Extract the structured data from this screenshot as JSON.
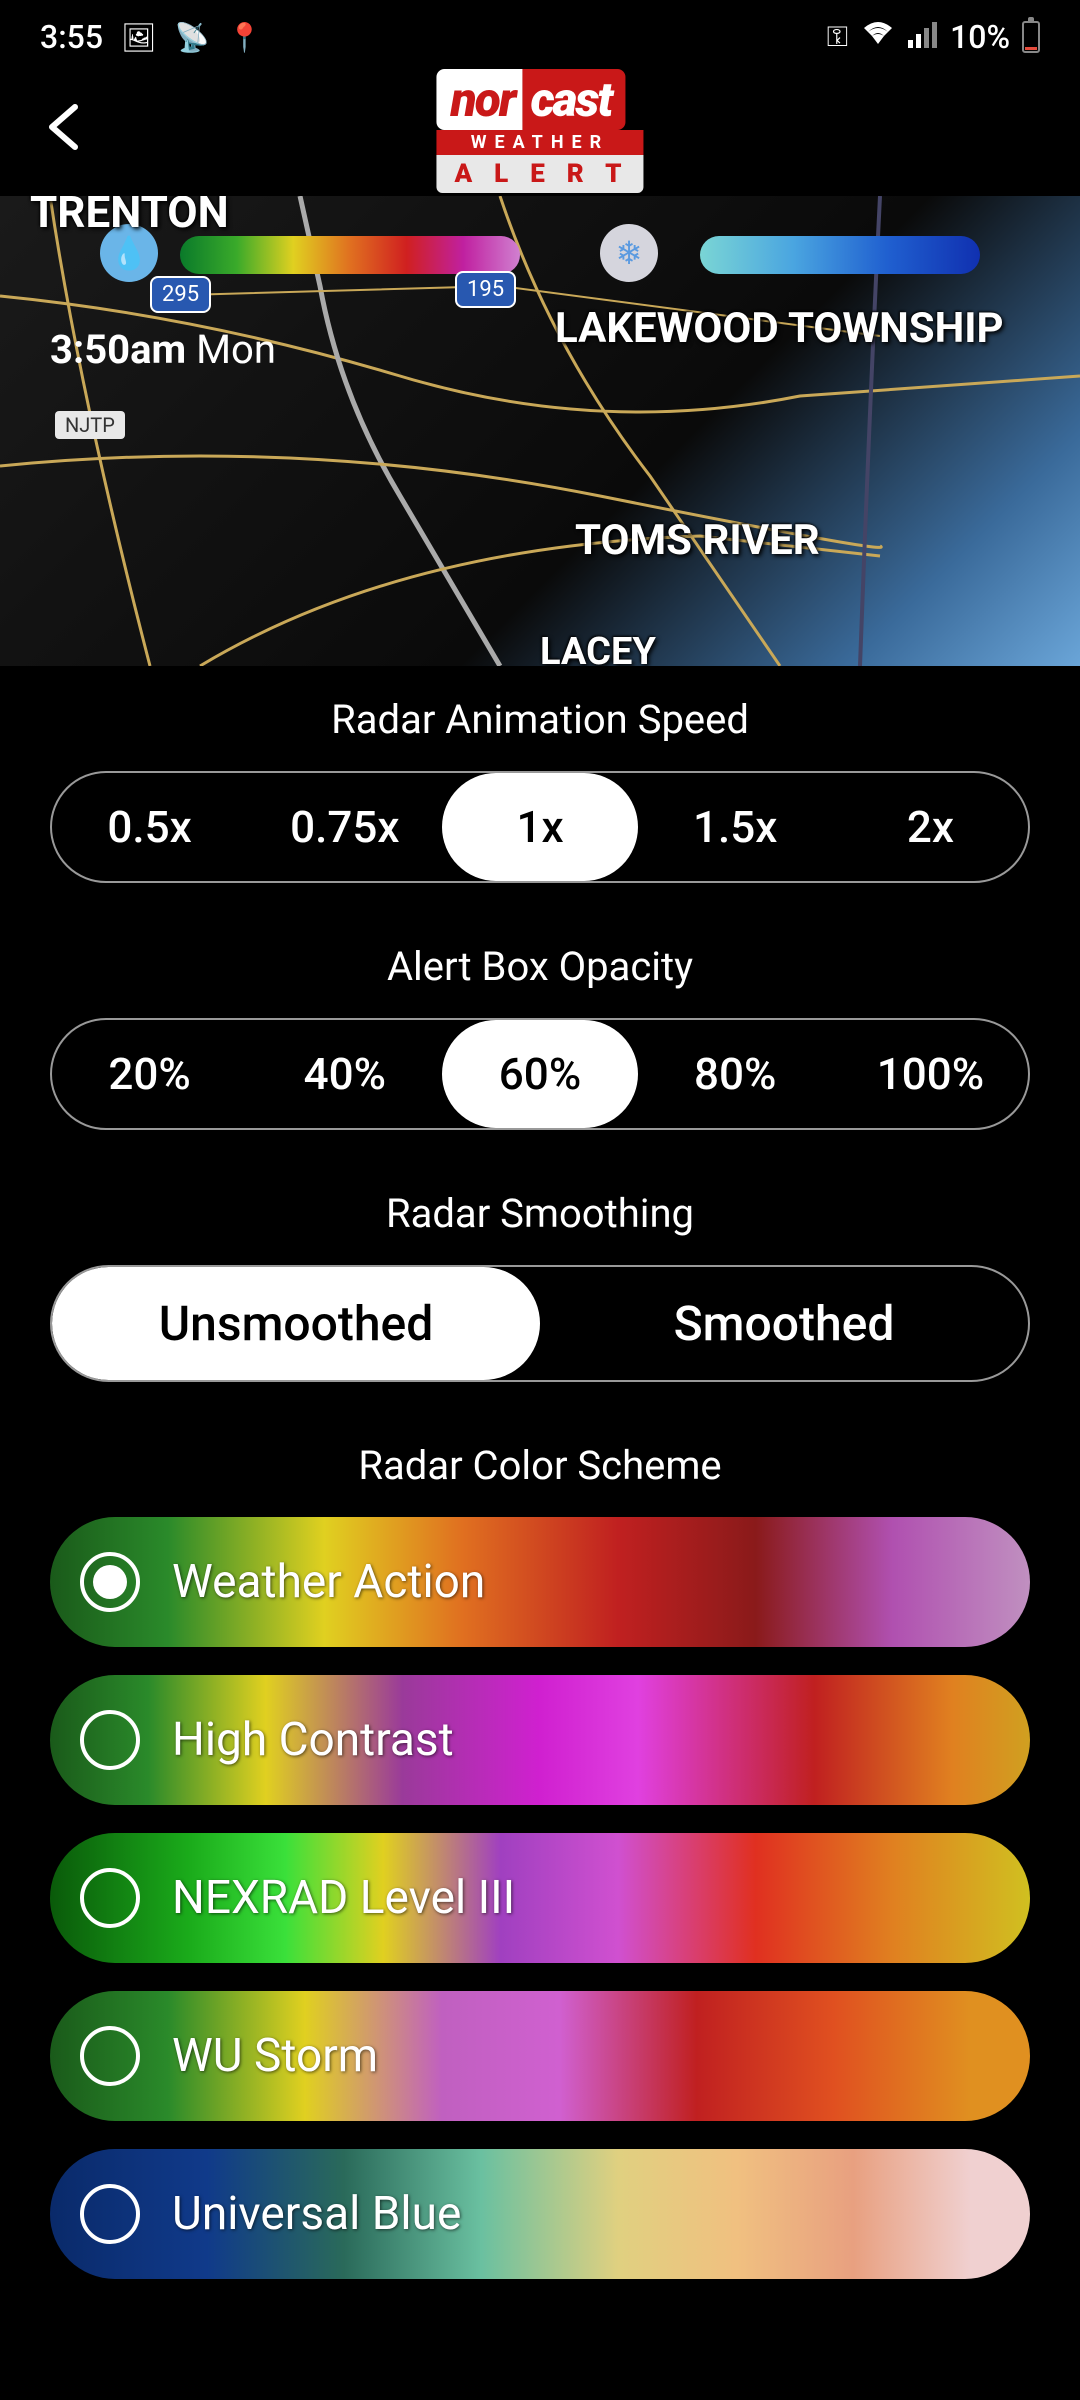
{
  "status_bar": {
    "time": "3:55",
    "battery_percent": "10%"
  },
  "header": {
    "logo_nor": "nor",
    "logo_cast": "cast",
    "logo_weather": "WEATHER",
    "logo_alert": "ALERT"
  },
  "map": {
    "time": "3:50am",
    "day": "Mon",
    "city_trenton": "TRENTON",
    "city_lakewood": "LAKEWOOD TOWNSHIP",
    "city_tomsriver": "TOMS RIVER",
    "city_lacey": "LACEY",
    "route_295": "295",
    "route_195": "195",
    "njtp": "NJTP",
    "legend_rain_gradient": [
      "#0a7a2a",
      "#3aaa2a",
      "#e0d020",
      "#e07020",
      "#d02020",
      "#c020a0",
      "#d080d0"
    ],
    "legend_ice_gradient": [
      "#7ad5d5",
      "#4aa5e0",
      "#2060d0",
      "#1030b0"
    ]
  },
  "settings": {
    "speed": {
      "title": "Radar Animation Speed",
      "options": [
        "0.5x",
        "0.75x",
        "1x",
        "1.5x",
        "2x"
      ],
      "selected": "1x"
    },
    "opacity": {
      "title": "Alert Box Opacity",
      "options": [
        "20%",
        "40%",
        "60%",
        "80%",
        "100%"
      ],
      "selected": "60%"
    },
    "smoothing": {
      "title": "Radar Smoothing",
      "options": [
        "Unsmoothed",
        "Smoothed"
      ],
      "selected": "Unsmoothed"
    },
    "color_scheme": {
      "title": "Radar Color Scheme",
      "selected": "Weather Action",
      "options": [
        {
          "label": "Weather Action",
          "gradient": "linear-gradient(90deg, #1a5a1a 0%, #2a8a2a 12%, #e0d020 28%, #e07020 42%, #c02020 58%, #8a1a1a 72%, #b050b0 86%, #c090c0 100%)"
        },
        {
          "label": "High Contrast",
          "gradient": "linear-gradient(90deg, #1a5a1a 0%, #2a8a2a 10%, #e0d020 22%, #9a3a9a 36%, #d020d0 50%, #e040e0 60%, #c02020 78%, #e08020 92%, #d0a020 100%)"
        },
        {
          "label": "NEXRAD Level III",
          "gradient": "linear-gradient(90deg, #0a5a0a 0%, #1aaa1a 14%, #3ae03a 24%, #e0d020 34%, #a040c0 46%, #d050d0 58%, #e03020 72%, #e08020 86%, #d0c020 100%)"
        },
        {
          "label": "WU Storm",
          "gradient": "linear-gradient(90deg, #1a5a1a 0%, #2a8a2a 12%, #e0d020 26%, #c060c0 40%, #d060d0 52%, #c02020 66%, #e05020 80%, #e09020 94%)"
        },
        {
          "label": "Universal Blue",
          "gradient": "linear-gradient(90deg, #0a2a6a 0%, #103a8a 16%, #2a6a5a 30%, #6ac0a0 44%, #e0d080 58%, #f0c080 70%, #e8a080 82%, #f0d0d0 94%)"
        }
      ]
    }
  }
}
